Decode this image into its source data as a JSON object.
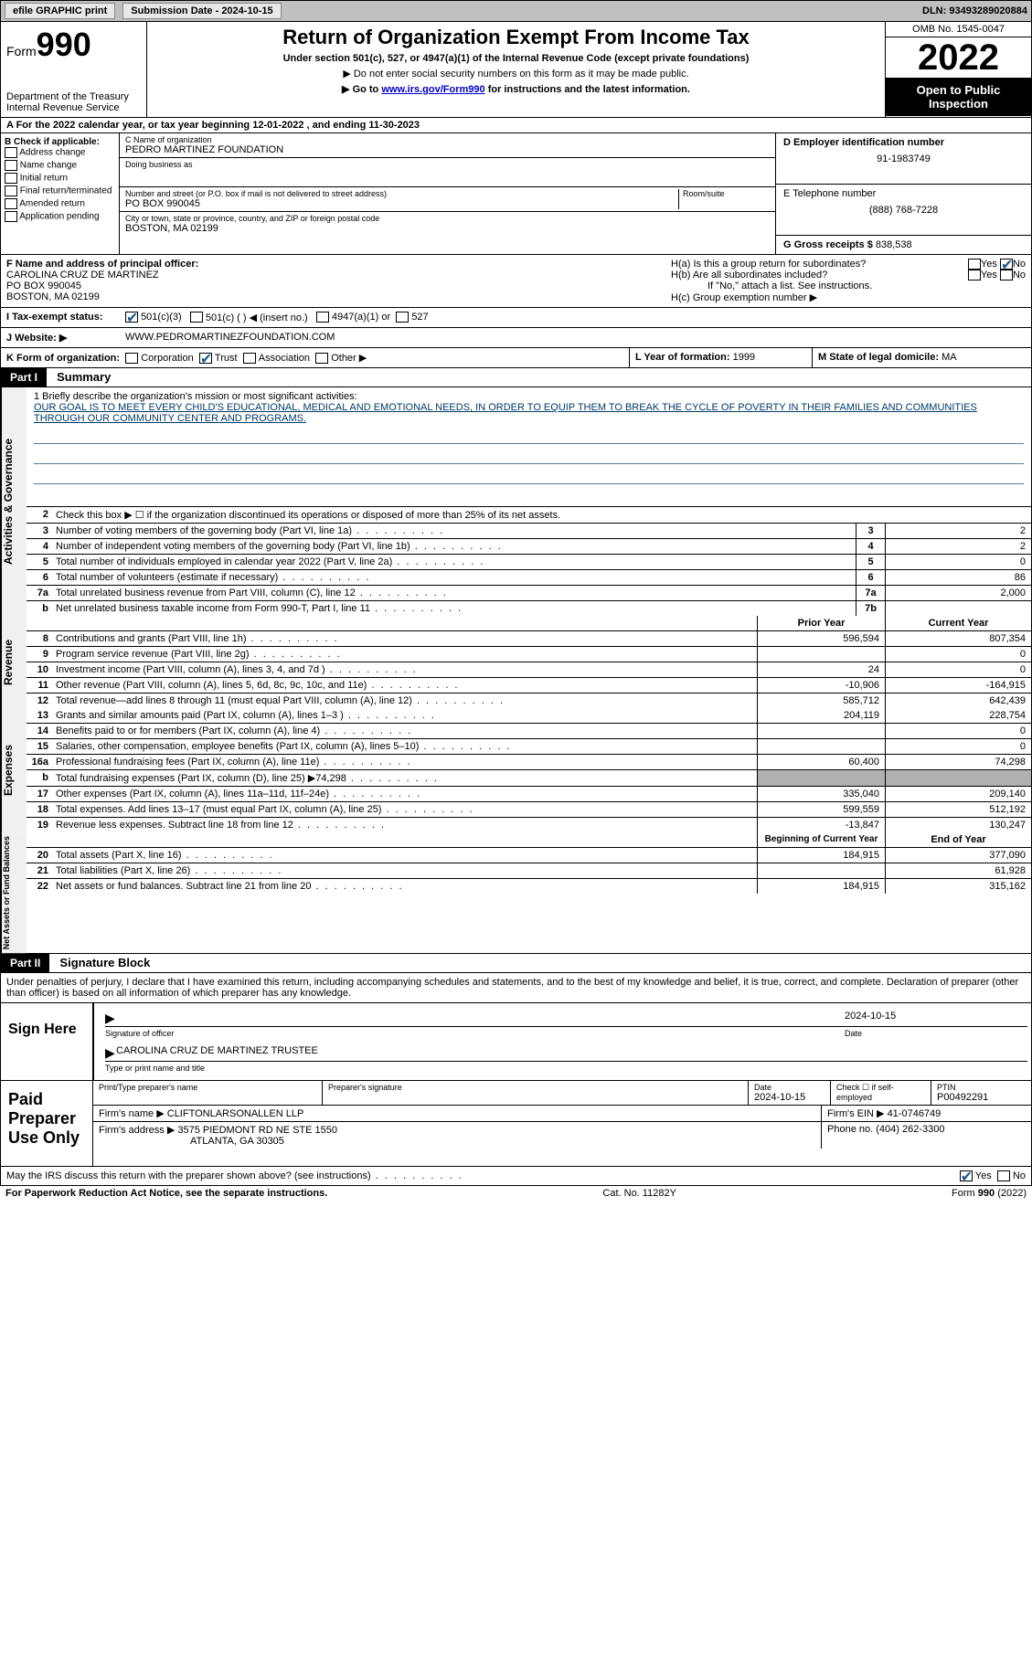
{
  "topbar": {
    "efile_label": "efile GRAPHIC print",
    "submission_label": "Submission Date - 2024-10-15",
    "dln_label": "DLN: 93493289020884"
  },
  "header": {
    "form_label": "Form",
    "form_number": "990",
    "title": "Return of Organization Exempt From Income Tax",
    "subtitle": "Under section 501(c), 527, or 4947(a)(1) of the Internal Revenue Code (except private foundations)",
    "note1": "▶ Do not enter social security numbers on this form as it may be made public.",
    "note2_pre": "▶ Go to ",
    "note2_link": "www.irs.gov/Form990",
    "note2_post": " for instructions and the latest information.",
    "dept": "Department of the Treasury\nInternal Revenue Service",
    "omb": "OMB No. 1545-0047",
    "year": "2022",
    "open": "Open to Public Inspection"
  },
  "lineA": {
    "text_pre": "A   For the 2022 calendar year, or tax year beginning ",
    "begin": "12-01-2022",
    "mid": "  , and ending ",
    "end": "11-30-2023"
  },
  "colB": {
    "header": "B Check if applicable:",
    "items": [
      "Address change",
      "Name change",
      "Initial return",
      "Final return/terminated",
      "Amended return",
      "Application pending"
    ]
  },
  "colC": {
    "name_label": "C Name of organization",
    "name": "PEDRO MARTINEZ FOUNDATION",
    "dba_label": "Doing business as",
    "dba": "",
    "street_label": "Number and street (or P.O. box if mail is not delivered to street address)",
    "room_label": "Room/suite",
    "street": "PO BOX 990045",
    "city_label": "City or town, state or province, country, and ZIP or foreign postal code",
    "city": "BOSTON, MA  02199"
  },
  "colD": {
    "ein_label": "D Employer identification number",
    "ein": "91-1983749",
    "phone_label": "E Telephone number",
    "phone": "(888) 768-7228",
    "gross_label": "G Gross receipts $",
    "gross": "838,538"
  },
  "rowF": {
    "label": "F  Name and address of principal officer:",
    "name": "CAROLINA CRUZ DE MARTINEZ",
    "addr1": "PO BOX 990045",
    "addr2": "BOSTON, MA  02199",
    "ha": "H(a)  Is this a group return for subordinates?",
    "hb": "H(b)  Are all subordinates included?",
    "hb_note": "If \"No,\" attach a list. See instructions.",
    "hc": "H(c)  Group exemption number ▶",
    "yes": "Yes",
    "no": "No"
  },
  "rowI": {
    "label": "I    Tax-exempt status:",
    "c3": "501(c)(3)",
    "c": "501(c) (  ) ◀ (insert no.)",
    "a1": "4947(a)(1) or",
    "s527": "527"
  },
  "rowJ": {
    "label": "J   Website: ▶",
    "url": "WWW.PEDROMARTINEZFOUNDATION.COM"
  },
  "rowK": {
    "label": "K Form of organization:",
    "corp": "Corporation",
    "trust": "Trust",
    "assoc": "Association",
    "other": "Other ▶",
    "l_label": "L Year of formation:",
    "l_val": "1999",
    "m_label": "M State of legal domicile:",
    "m_val": "MA"
  },
  "parts": {
    "p1": "Part I",
    "p1_title": "Summary",
    "p2": "Part II",
    "p2_title": "Signature Block"
  },
  "mission": {
    "intro": "1   Briefly describe the organization's mission or most significant activities:",
    "text": "OUR GOAL IS TO MEET EVERY CHILD'S EDUCATIONAL, MEDICAL AND EMOTIONAL NEEDS, IN ORDER TO EQUIP THEM TO BREAK THE CYCLE OF POVERTY IN THEIR FAMILIES AND COMMUNITIES THROUGH OUR COMMUNITY CENTER AND PROGRAMS."
  },
  "vtabs": {
    "ag": "Activities & Governance",
    "rev": "Revenue",
    "exp": "Expenses",
    "nab": "Net Assets or Fund Balances"
  },
  "summary": {
    "line2": "Check this box ▶ ☐ if the organization discontinued its operations or disposed of more than 25% of its net assets.",
    "rows_gov": [
      {
        "n": "3",
        "d": "Number of voting members of the governing body (Part VI, line 1a)",
        "b": "3",
        "v": "2"
      },
      {
        "n": "4",
        "d": "Number of independent voting members of the governing body (Part VI, line 1b)",
        "b": "4",
        "v": "2"
      },
      {
        "n": "5",
        "d": "Total number of individuals employed in calendar year 2022 (Part V, line 2a)",
        "b": "5",
        "v": "0"
      },
      {
        "n": "6",
        "d": "Total number of volunteers (estimate if necessary)",
        "b": "6",
        "v": "86"
      },
      {
        "n": "7a",
        "d": "Total unrelated business revenue from Part VIII, column (C), line 12",
        "b": "7a",
        "v": "2,000"
      },
      {
        "n": "b",
        "d": "Net unrelated business taxable income from Form 990-T, Part I, line 11",
        "b": "7b",
        "v": ""
      }
    ],
    "hdr_prior": "Prior Year",
    "hdr_current": "Current Year",
    "rows_rev": [
      {
        "n": "8",
        "d": "Contributions and grants (Part VIII, line 1h)",
        "p": "596,594",
        "c": "807,354"
      },
      {
        "n": "9",
        "d": "Program service revenue (Part VIII, line 2g)",
        "p": "",
        "c": "0"
      },
      {
        "n": "10",
        "d": "Investment income (Part VIII, column (A), lines 3, 4, and 7d )",
        "p": "24",
        "c": "0"
      },
      {
        "n": "11",
        "d": "Other revenue (Part VIII, column (A), lines 5, 6d, 8c, 9c, 10c, and 11e)",
        "p": "-10,906",
        "c": "-164,915"
      },
      {
        "n": "12",
        "d": "Total revenue—add lines 8 through 11 (must equal Part VIII, column (A), line 12)",
        "p": "585,712",
        "c": "642,439"
      }
    ],
    "rows_exp": [
      {
        "n": "13",
        "d": "Grants and similar amounts paid (Part IX, column (A), lines 1–3 )",
        "p": "204,119",
        "c": "228,754"
      },
      {
        "n": "14",
        "d": "Benefits paid to or for members (Part IX, column (A), line 4)",
        "p": "",
        "c": "0"
      },
      {
        "n": "15",
        "d": "Salaries, other compensation, employee benefits (Part IX, column (A), lines 5–10)",
        "p": "",
        "c": "0"
      },
      {
        "n": "16a",
        "d": "Professional fundraising fees (Part IX, column (A), line 11e)",
        "p": "60,400",
        "c": "74,298"
      },
      {
        "n": "b",
        "d": "Total fundraising expenses (Part IX, column (D), line 25) ▶74,298",
        "p": "GRAY",
        "c": "GRAY"
      },
      {
        "n": "17",
        "d": "Other expenses (Part IX, column (A), lines 11a–11d, 11f–24e)",
        "p": "335,040",
        "c": "209,140"
      },
      {
        "n": "18",
        "d": "Total expenses. Add lines 13–17 (must equal Part IX, column (A), line 25)",
        "p": "599,559",
        "c": "512,192"
      },
      {
        "n": "19",
        "d": "Revenue less expenses. Subtract line 18 from line 12",
        "p": "-13,847",
        "c": "130,247"
      }
    ],
    "hdr_begin": "Beginning of Current Year",
    "hdr_end": "End of Year",
    "rows_net": [
      {
        "n": "20",
        "d": "Total assets (Part X, line 16)",
        "p": "184,915",
        "c": "377,090"
      },
      {
        "n": "21",
        "d": "Total liabilities (Part X, line 26)",
        "p": "",
        "c": "61,928"
      },
      {
        "n": "22",
        "d": "Net assets or fund balances. Subtract line 21 from line 20",
        "p": "184,915",
        "c": "315,162"
      }
    ]
  },
  "sig": {
    "perjury": "Under penalties of perjury, I declare that I have examined this return, including accompanying schedules and statements, and to the best of my knowledge and belief, it is true, correct, and complete. Declaration of preparer (other than officer) is based on all information of which preparer has any knowledge.",
    "sign_here": "Sign Here",
    "sig_officer": "Signature of officer",
    "date_label": "Date",
    "sig_date": "2024-10-15",
    "name_title": "CAROLINA CRUZ DE MARTINEZ  TRUSTEE",
    "type_name": "Type or print name and title",
    "paid": "Paid Preparer Use Only",
    "prep_name_label": "Print/Type preparer's name",
    "prep_sig_label": "Preparer's signature",
    "prep_date": "2024-10-15",
    "check_self": "Check ☐ if self-employed",
    "ptin_label": "PTIN",
    "ptin": "P00492291",
    "firm_name_label": "Firm's name    ▶",
    "firm_name": "CLIFTONLARSONALLEN LLP",
    "firm_ein_label": "Firm's EIN ▶",
    "firm_ein": "41-0746749",
    "firm_addr_label": "Firm's address ▶",
    "firm_addr1": "3575 PIEDMONT RD NE STE 1550",
    "firm_addr2": "ATLANTA, GA  30305",
    "phone_label": "Phone no.",
    "phone": "(404) 262-3300"
  },
  "discuss": {
    "q": "May the IRS discuss this return with the preparer shown above? (see instructions)",
    "yes": "Yes",
    "no": "No"
  },
  "footer": {
    "left": "For Paperwork Reduction Act Notice, see the separate instructions.",
    "mid": "Cat. No. 11282Y",
    "right": "Form 990 (2022)"
  }
}
